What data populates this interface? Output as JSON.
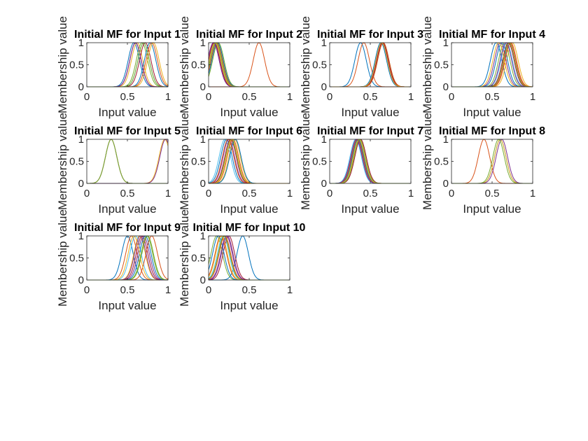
{
  "figure": {
    "background": "#ffffff"
  },
  "colors": [
    "#0072BD",
    "#D95319",
    "#EDB120",
    "#7E2F8E",
    "#77AC30",
    "#4DBEEE",
    "#A2142F"
  ],
  "chart_data": [
    {
      "type": "line",
      "title": "Initial MF for Input 1",
      "xlabel": "Input value",
      "ylabel": "Membership value",
      "xlim": [
        0,
        1
      ],
      "ylim": [
        0,
        1
      ],
      "xticks": [
        "0",
        "0.5",
        "1"
      ],
      "yticks": [
        "0",
        "0.5",
        "1"
      ],
      "sigma": 0.07,
      "centers": [
        0.58,
        0.6,
        0.62,
        0.6,
        0.68,
        0.7,
        0.72,
        0.78,
        0.8,
        0.82,
        0.6,
        0.7
      ]
    },
    {
      "type": "line",
      "title": "Initial MF for Input 2",
      "xlabel": "Input value",
      "ylabel": "Membership value",
      "xlim": [
        0,
        1
      ],
      "ylim": [
        0,
        1
      ],
      "xticks": [
        "0",
        "0.5",
        "1"
      ],
      "yticks": [
        "0",
        "0.5",
        "1"
      ],
      "sigma": 0.07,
      "centers": [
        0.08,
        0.62,
        0.1,
        0.06,
        0.12,
        0.09,
        0.07,
        0.11,
        0.1,
        0.08,
        0.06,
        0.09
      ]
    },
    {
      "type": "line",
      "title": "Initial MF for Input 3",
      "xlabel": "Input value",
      "ylabel": "Membership value",
      "xlim": [
        0,
        1
      ],
      "ylim": [
        0,
        1
      ],
      "xticks": [
        "0",
        "0.5",
        "1"
      ],
      "yticks": [
        "0",
        "0.5",
        "1"
      ],
      "sigma": 0.07,
      "centers": [
        0.38,
        0.42,
        0.64,
        0.65,
        0.66,
        0.64,
        0.65,
        0.63,
        0.66,
        0.64
      ]
    },
    {
      "type": "line",
      "title": "Initial MF for Input 4",
      "xlabel": "Input value",
      "ylabel": "Membership value",
      "xlim": [
        0,
        1
      ],
      "ylim": [
        0,
        1
      ],
      "xticks": [
        "0",
        "0.5",
        "1"
      ],
      "yticks": [
        "0",
        "0.5",
        "1"
      ],
      "sigma": 0.07,
      "centers": [
        0.55,
        0.72,
        0.75,
        0.6,
        0.65,
        0.68,
        0.7,
        0.62,
        0.73,
        0.58,
        0.67,
        0.71
      ]
    },
    {
      "type": "line",
      "title": "Initial MF for Input 5",
      "xlabel": "Input value",
      "ylabel": "Membership value",
      "xlim": [
        0,
        1
      ],
      "ylim": [
        0,
        1
      ],
      "xticks": [
        "0",
        "0.5",
        "1"
      ],
      "yticks": [
        "0",
        "0.5",
        "1"
      ],
      "sigma": 0.07,
      "centers": [
        0.3,
        0.3,
        0.96,
        0.97,
        0.3
      ]
    },
    {
      "type": "line",
      "title": "Initial MF for Input 6",
      "xlabel": "Input value",
      "ylabel": "Membership value",
      "xlim": [
        0,
        1
      ],
      "ylim": [
        0,
        1
      ],
      "xticks": [
        "0",
        "0.5",
        "1"
      ],
      "yticks": [
        "0",
        "0.5",
        "1"
      ],
      "sigma": 0.07,
      "centers": [
        0.22,
        0.3,
        0.32,
        0.25,
        0.28,
        0.2,
        0.27,
        0.33,
        0.24,
        0.29
      ]
    },
    {
      "type": "line",
      "title": "Initial MF for Input 7",
      "xlabel": "Input value",
      "ylabel": "Membership value",
      "xlim": [
        0,
        1
      ],
      "ylim": [
        0,
        1
      ],
      "xticks": [
        "0",
        "0.5",
        "1"
      ],
      "yticks": [
        "0",
        "0.5",
        "1"
      ],
      "sigma": 0.07,
      "centers": [
        0.33,
        0.35,
        0.37,
        0.34,
        0.36,
        0.32,
        0.38,
        0.35,
        0.34,
        0.36,
        0.33,
        0.37
      ]
    },
    {
      "type": "line",
      "title": "Initial MF for Input 8",
      "xlabel": "Input value",
      "ylabel": "Membership value",
      "xlim": [
        0,
        1
      ],
      "ylim": [
        0,
        1
      ],
      "xticks": [
        "0",
        "0.5",
        "1"
      ],
      "yticks": [
        "0",
        "0.5",
        "1"
      ],
      "sigma": 0.07,
      "centers": [
        0.6,
        0.4,
        0.6,
        0.62,
        0.58
      ]
    },
    {
      "type": "line",
      "title": "Initial MF for Input 9",
      "xlabel": "Input value",
      "ylabel": "Membership value",
      "xlim": [
        0,
        1
      ],
      "ylim": [
        0,
        1
      ],
      "xticks": [
        "0",
        "0.5",
        "1"
      ],
      "yticks": [
        "0",
        "0.5",
        "1"
      ],
      "sigma": 0.07,
      "centers": [
        0.5,
        0.55,
        0.65,
        0.7,
        0.75,
        0.6,
        0.68,
        0.72,
        0.8,
        0.58,
        0.66,
        0.74
      ]
    },
    {
      "type": "line",
      "title": "Initial MF for Input 10",
      "xlabel": "Input value",
      "ylabel": "Membership value",
      "xlim": [
        0,
        1
      ],
      "ylim": [
        0,
        1
      ],
      "xticks": [
        "0",
        "0.5",
        "1"
      ],
      "yticks": [
        "0",
        "0.5",
        "1"
      ],
      "sigma": 0.07,
      "centers": [
        0.42,
        0.15,
        0.2,
        0.22,
        0.1,
        0.18,
        0.25,
        0.12,
        0.2,
        0.16,
        0.23,
        0.19
      ]
    }
  ]
}
